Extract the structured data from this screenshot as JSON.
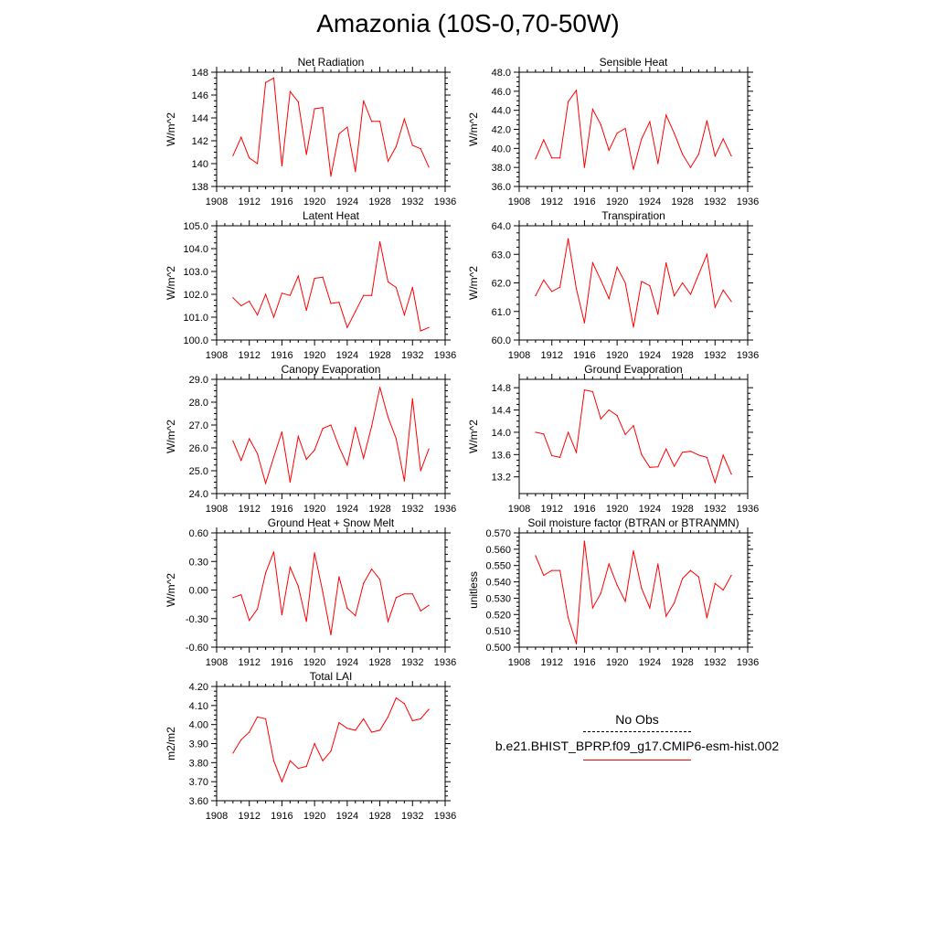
{
  "figure": {
    "title": "Amazonia (10S-0,70-50W)",
    "line_color": "#ff0000",
    "legend": {
      "obs_label": "No Obs",
      "model_label": "b.e21.BHIST_BPRP.f09_g17.CMIP6-esm-hist.002"
    }
  },
  "chart_data": [
    {
      "type": "line",
      "title": "Net Radiation",
      "ylabel": "W/m^2",
      "xlim": [
        1908,
        1936
      ],
      "xticks": [
        1908,
        1912,
        1916,
        1920,
        1924,
        1928,
        1932,
        1936
      ],
      "xtick_labels": [
        "1908",
        "1912",
        "1916",
        "1920",
        "1924",
        "1928",
        "1932",
        "1936"
      ],
      "ylim": [
        138,
        148
      ],
      "yticks": [
        138,
        140,
        142,
        144,
        146,
        148
      ],
      "ytick_labels": [
        "138",
        "140",
        "142",
        "144",
        "146",
        "148"
      ],
      "x": [
        1910,
        1911,
        1912,
        1913,
        1914,
        1915,
        1916,
        1917,
        1918,
        1919,
        1920,
        1921,
        1922,
        1923,
        1924,
        1925,
        1926,
        1927,
        1928,
        1929,
        1930,
        1931,
        1932,
        1933,
        1934
      ],
      "values": [
        140.7,
        142.3,
        140.5,
        140.0,
        147.1,
        147.5,
        139.8,
        146.3,
        145.4,
        140.8,
        144.8,
        144.9,
        138.9,
        142.6,
        143.2,
        139.3,
        145.5,
        143.7,
        143.7,
        140.2,
        141.5,
        143.9,
        141.6,
        141.3,
        139.7
      ]
    },
    {
      "type": "line",
      "title": "Sensible Heat",
      "ylabel": "W/m^2",
      "xlim": [
        1908,
        1936
      ],
      "xticks": [
        1908,
        1912,
        1916,
        1920,
        1924,
        1928,
        1932,
        1936
      ],
      "xtick_labels": [
        "1908",
        "1912",
        "1916",
        "1920",
        "1924",
        "1928",
        "1932",
        "1936"
      ],
      "ylim": [
        36,
        48
      ],
      "yticks": [
        36,
        38,
        40,
        42,
        44,
        46,
        48
      ],
      "ytick_labels": [
        "36.0",
        "38.0",
        "40.0",
        "42.0",
        "44.0",
        "46.0",
        "48.0"
      ],
      "x": [
        1910,
        1911,
        1912,
        1913,
        1914,
        1915,
        1916,
        1917,
        1918,
        1919,
        1920,
        1921,
        1922,
        1923,
        1924,
        1925,
        1926,
        1927,
        1928,
        1929,
        1930,
        1931,
        1932,
        1933,
        1934
      ],
      "values": [
        38.9,
        40.9,
        39.0,
        39.0,
        44.9,
        46.1,
        38.0,
        44.1,
        42.5,
        39.8,
        41.6,
        42.1,
        37.8,
        41.0,
        42.8,
        38.4,
        43.5,
        41.6,
        39.4,
        38.0,
        39.4,
        42.9,
        39.2,
        41.0,
        39.2
      ]
    },
    {
      "type": "line",
      "title": "Latent Heat",
      "ylabel": "W/m^2",
      "xlim": [
        1908,
        1936
      ],
      "xticks": [
        1908,
        1912,
        1916,
        1920,
        1924,
        1928,
        1932,
        1936
      ],
      "xtick_labels": [
        "1908",
        "1912",
        "1916",
        "1920",
        "1924",
        "1928",
        "1932",
        "1936"
      ],
      "ylim": [
        100,
        105
      ],
      "yticks": [
        100,
        101,
        102,
        103,
        104,
        105
      ],
      "ytick_labels": [
        "100.0",
        "101.0",
        "102.0",
        "103.0",
        "104.0",
        "105.0"
      ],
      "x": [
        1910,
        1911,
        1912,
        1913,
        1914,
        1915,
        1916,
        1917,
        1918,
        1919,
        1920,
        1921,
        1922,
        1923,
        1924,
        1925,
        1926,
        1927,
        1928,
        1929,
        1930,
        1931,
        1932,
        1933,
        1934
      ],
      "values": [
        101.85,
        101.5,
        101.7,
        101.1,
        102.0,
        101.0,
        102.05,
        101.95,
        102.8,
        101.3,
        102.7,
        102.75,
        101.6,
        101.65,
        100.55,
        101.25,
        101.95,
        101.95,
        104.3,
        102.55,
        102.3,
        101.1,
        102.3,
        100.4,
        100.55
      ]
    },
    {
      "type": "line",
      "title": "Transpiration",
      "ylabel": "W/m^2",
      "xlim": [
        1908,
        1936
      ],
      "xticks": [
        1908,
        1912,
        1916,
        1920,
        1924,
        1928,
        1932,
        1936
      ],
      "xtick_labels": [
        "1908",
        "1912",
        "1916",
        "1920",
        "1924",
        "1928",
        "1932",
        "1936"
      ],
      "ylim": [
        60,
        64
      ],
      "yticks": [
        60,
        61,
        62,
        63,
        64
      ],
      "ytick_labels": [
        "60.0",
        "61.0",
        "62.0",
        "63.0",
        "64.0"
      ],
      "x": [
        1910,
        1911,
        1912,
        1913,
        1914,
        1915,
        1916,
        1917,
        1918,
        1919,
        1920,
        1921,
        1922,
        1923,
        1924,
        1925,
        1926,
        1927,
        1928,
        1929,
        1930,
        1931,
        1932,
        1933,
        1934
      ],
      "values": [
        61.55,
        62.1,
        61.7,
        61.85,
        63.55,
        61.8,
        60.6,
        62.7,
        62.1,
        61.45,
        62.55,
        62.0,
        60.45,
        62.05,
        61.9,
        60.9,
        62.7,
        61.55,
        62.0,
        61.6,
        62.3,
        63.0,
        61.15,
        61.75,
        61.35
      ]
    },
    {
      "type": "line",
      "title": "Canopy Evaporation",
      "ylabel": "W/m^2",
      "xlim": [
        1908,
        1936
      ],
      "xticks": [
        1908,
        1912,
        1916,
        1920,
        1924,
        1928,
        1932,
        1936
      ],
      "xtick_labels": [
        "1908",
        "1912",
        "1916",
        "1920",
        "1924",
        "1928",
        "1932",
        "1936"
      ],
      "ylim": [
        24,
        29
      ],
      "yticks": [
        24,
        25,
        26,
        27,
        28,
        29
      ],
      "ytick_labels": [
        "24.0",
        "25.0",
        "26.0",
        "27.0",
        "28.0",
        "29.0"
      ],
      "x": [
        1910,
        1911,
        1912,
        1913,
        1914,
        1915,
        1916,
        1917,
        1918,
        1919,
        1920,
        1921,
        1922,
        1923,
        1924,
        1925,
        1926,
        1927,
        1928,
        1929,
        1930,
        1931,
        1932,
        1933,
        1934
      ],
      "values": [
        26.3,
        25.45,
        26.4,
        25.75,
        24.45,
        25.6,
        26.7,
        24.5,
        26.5,
        25.5,
        25.9,
        26.85,
        27.0,
        26.05,
        25.25,
        26.9,
        25.55,
        26.95,
        28.65,
        27.35,
        26.4,
        24.55,
        28.15,
        25.0,
        25.95
      ]
    },
    {
      "type": "line",
      "title": "Ground Evaporation",
      "ylabel": "W/m^2",
      "xlim": [
        1908,
        1936
      ],
      "xticks": [
        1908,
        1912,
        1916,
        1920,
        1924,
        1928,
        1932,
        1936
      ],
      "xtick_labels": [
        "1908",
        "1912",
        "1916",
        "1920",
        "1924",
        "1928",
        "1932",
        "1936"
      ],
      "ylim": [
        12.9,
        14.95
      ],
      "yticks": [
        13.2,
        13.6,
        14.0,
        14.4,
        14.8
      ],
      "ytick_labels": [
        "13.2",
        "13.6",
        "14.0",
        "14.4",
        "14.8"
      ],
      "x": [
        1910,
        1911,
        1912,
        1913,
        1914,
        1915,
        1916,
        1917,
        1918,
        1919,
        1920,
        1921,
        1922,
        1923,
        1924,
        1925,
        1926,
        1927,
        1928,
        1929,
        1930,
        1931,
        1932,
        1933,
        1934
      ],
      "values": [
        14.0,
        13.97,
        13.58,
        13.55,
        14.0,
        13.64,
        14.76,
        14.73,
        14.24,
        14.4,
        14.3,
        13.96,
        14.12,
        13.6,
        13.37,
        13.38,
        13.7,
        13.39,
        13.64,
        13.66,
        13.59,
        13.55,
        13.1,
        13.59,
        13.25
      ]
    },
    {
      "type": "line",
      "title": "Ground Heat + Snow Melt",
      "ylabel": "W/m^2",
      "xlim": [
        1908,
        1936
      ],
      "xticks": [
        1908,
        1912,
        1916,
        1920,
        1924,
        1928,
        1932,
        1936
      ],
      "xtick_labels": [
        "1908",
        "1912",
        "1916",
        "1920",
        "1924",
        "1928",
        "1932",
        "1936"
      ],
      "ylim": [
        -0.6,
        0.6
      ],
      "yticks": [
        -0.6,
        -0.3,
        0.0,
        0.3,
        0.6
      ],
      "ytick_labels": [
        "-0.60",
        "-0.30",
        "0.00",
        "0.30",
        "0.60"
      ],
      "x": [
        1910,
        1911,
        1912,
        1913,
        1914,
        1915,
        1916,
        1917,
        1918,
        1919,
        1920,
        1921,
        1922,
        1923,
        1924,
        1925,
        1926,
        1927,
        1928,
        1929,
        1930,
        1931,
        1932,
        1933,
        1934
      ],
      "values": [
        -0.08,
        -0.05,
        -0.32,
        -0.2,
        0.18,
        0.4,
        -0.26,
        0.24,
        0.04,
        -0.33,
        0.39,
        -0.02,
        -0.47,
        0.14,
        -0.19,
        -0.27,
        0.07,
        0.22,
        0.11,
        -0.33,
        -0.08,
        -0.04,
        -0.04,
        -0.22,
        -0.16
      ]
    },
    {
      "type": "line",
      "title": "Soil moisture factor (BTRAN or BTRANMN)",
      "ylabel": "unitless",
      "xlim": [
        1908,
        1936
      ],
      "xticks": [
        1908,
        1912,
        1916,
        1920,
        1924,
        1928,
        1932,
        1936
      ],
      "xtick_labels": [
        "1908",
        "1912",
        "1916",
        "1920",
        "1924",
        "1928",
        "1932",
        "1936"
      ],
      "ylim": [
        0.5,
        0.57
      ],
      "yticks": [
        0.5,
        0.51,
        0.52,
        0.53,
        0.54,
        0.55,
        0.56,
        0.57
      ],
      "ytick_labels": [
        "0.500",
        "0.510",
        "0.520",
        "0.530",
        "0.540",
        "0.550",
        "0.560",
        "0.570"
      ],
      "x": [
        1910,
        1911,
        1912,
        1913,
        1914,
        1915,
        1916,
        1917,
        1918,
        1919,
        1920,
        1921,
        1922,
        1923,
        1924,
        1925,
        1926,
        1927,
        1928,
        1929,
        1930,
        1931,
        1932,
        1933,
        1934
      ],
      "values": [
        0.556,
        0.544,
        0.547,
        0.547,
        0.518,
        0.502,
        0.565,
        0.524,
        0.533,
        0.551,
        0.538,
        0.528,
        0.559,
        0.536,
        0.524,
        0.551,
        0.519,
        0.527,
        0.542,
        0.547,
        0.543,
        0.518,
        0.539,
        0.535,
        0.544
      ]
    },
    {
      "type": "line",
      "title": "Total LAI",
      "ylabel": "m2/m2",
      "xlim": [
        1908,
        1936
      ],
      "xticks": [
        1908,
        1912,
        1916,
        1920,
        1924,
        1928,
        1932,
        1936
      ],
      "xtick_labels": [
        "1908",
        "1912",
        "1916",
        "1920",
        "1924",
        "1928",
        "1932",
        "1936"
      ],
      "ylim": [
        3.6,
        4.2
      ],
      "yticks": [
        3.6,
        3.7,
        3.8,
        3.9,
        4.0,
        4.1,
        4.2
      ],
      "ytick_labels": [
        "3.60",
        "3.70",
        "3.80",
        "3.90",
        "4.00",
        "4.10",
        "4.20"
      ],
      "x": [
        1910,
        1911,
        1912,
        1913,
        1914,
        1915,
        1916,
        1917,
        1918,
        1919,
        1920,
        1921,
        1922,
        1923,
        1924,
        1925,
        1926,
        1927,
        1928,
        1929,
        1930,
        1931,
        1932,
        1933,
        1934
      ],
      "values": [
        3.85,
        3.92,
        3.96,
        4.04,
        4.03,
        3.81,
        3.7,
        3.81,
        3.77,
        3.78,
        3.9,
        3.81,
        3.86,
        4.01,
        3.98,
        3.97,
        4.03,
        3.96,
        3.97,
        4.04,
        4.14,
        4.11,
        4.02,
        4.03,
        4.08
      ]
    }
  ]
}
